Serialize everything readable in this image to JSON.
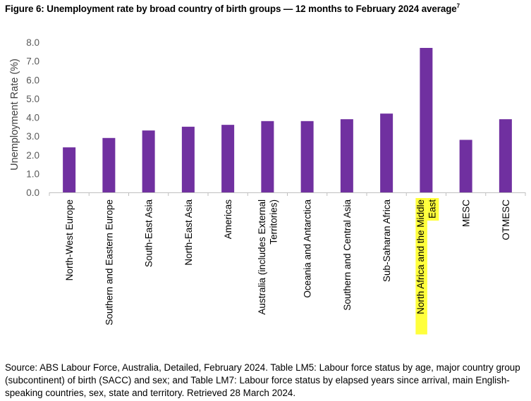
{
  "figure": {
    "title": "Figure 6: Unemployment rate by broad country of birth groups — 12 months to February 2024 average",
    "title_footnote": "7",
    "source": "Source: ABS Labour Force, Australia, Detailed, February 2024. Table LM5: Labour force status by age, major country group (subcontinent) of birth (SACC) and sex; and Table LM7: Labour force status by elapsed years since arrival, main English-speaking countries, sex, state and territory. Retrieved 28 March 2024."
  },
  "chart_data": {
    "type": "bar",
    "title": "Figure 6: Unemployment rate by broad country of birth groups — 12 months to February 2024 average",
    "xlabel": "",
    "ylabel": "Unemployment Rate (%)",
    "ylim": [
      0,
      8
    ],
    "yticks": [
      "0.0",
      "1.0",
      "2.0",
      "3.0",
      "4.0",
      "5.0",
      "6.0",
      "7.0",
      "8.0"
    ],
    "grid": false,
    "bar_color": "#7030a0",
    "highlight_color": "#ffff3c",
    "categories": [
      [
        "North-West Europe"
      ],
      [
        "Southern and Eastern Europe"
      ],
      [
        "South-East Asia"
      ],
      [
        "North-East Asia"
      ],
      [
        "Americas"
      ],
      [
        "Australia (includes External",
        "Territories)"
      ],
      [
        "Oceania and Antarctica"
      ],
      [
        "Southern and Central Asia"
      ],
      [
        "Sub-Saharan Africa"
      ],
      [
        "North Africa and the Middle",
        "East"
      ],
      [
        "MESC"
      ],
      [
        "OTMESC"
      ]
    ],
    "highlighted_category": 9,
    "values": [
      2.4,
      2.9,
      3.3,
      3.5,
      3.6,
      3.8,
      3.8,
      3.9,
      4.2,
      7.7,
      2.8,
      3.9
    ]
  }
}
